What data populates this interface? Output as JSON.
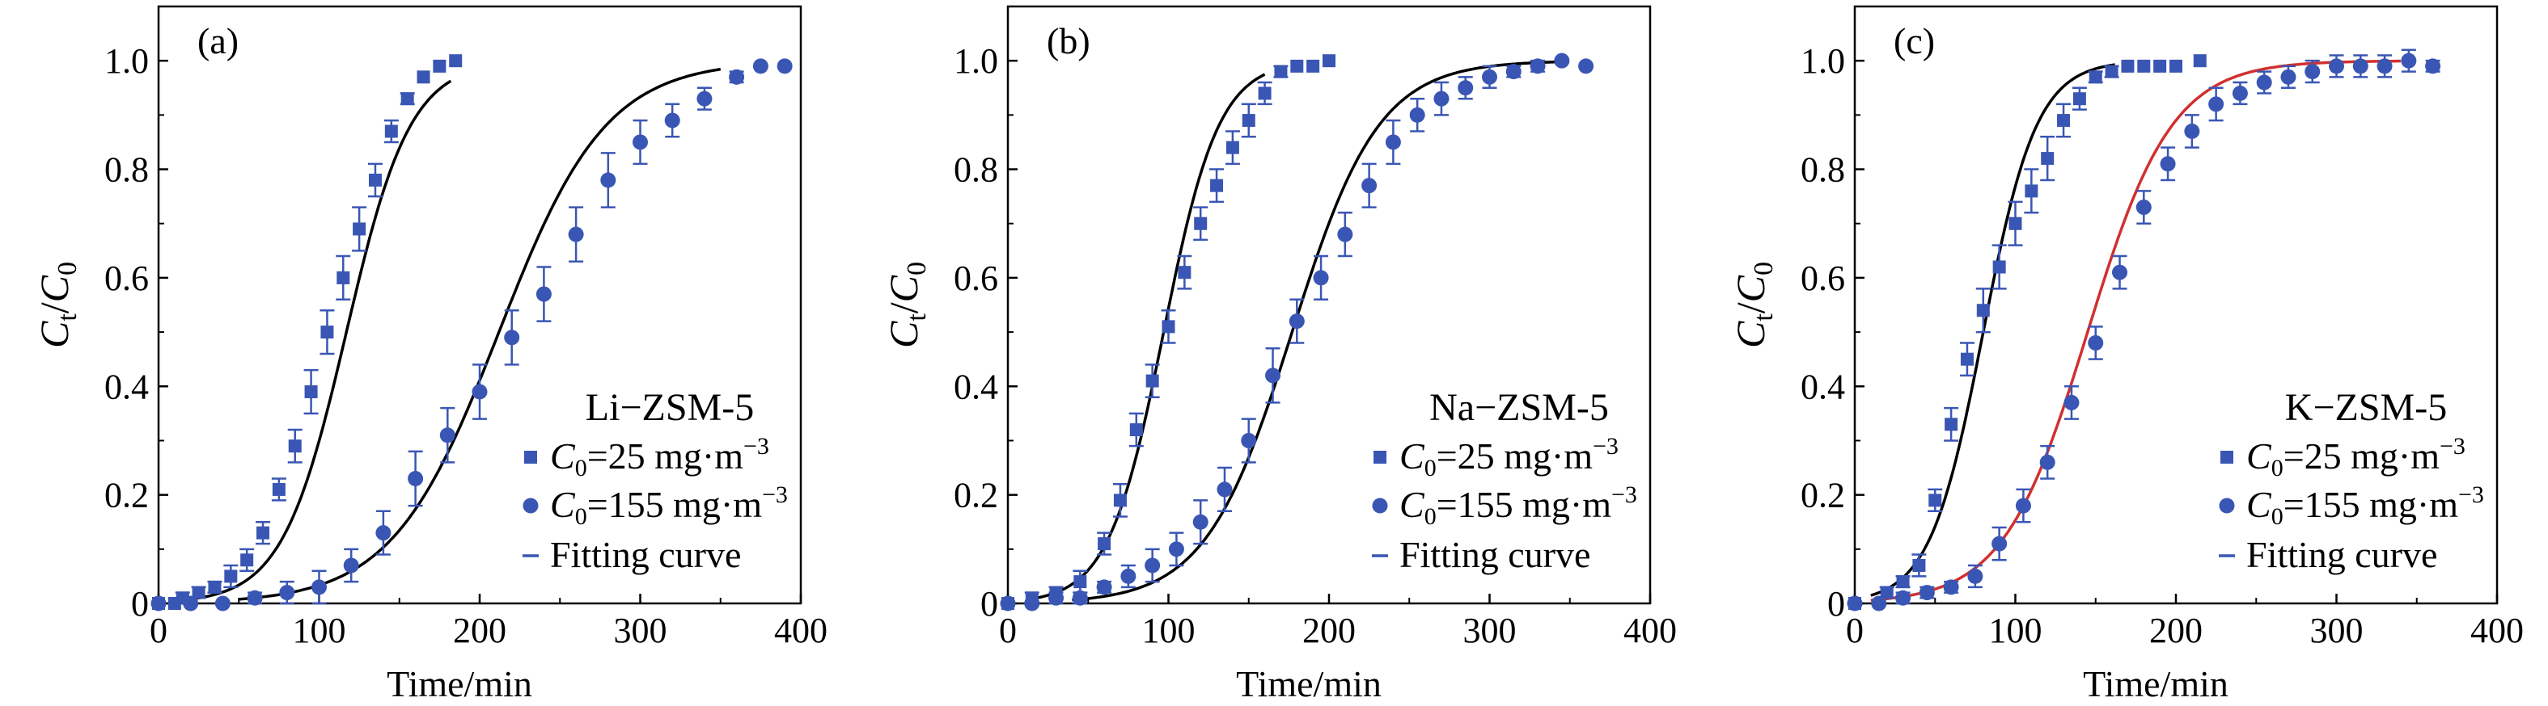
{
  "chart_data": [
    {
      "type": "scatter",
      "panel_label": "(a)",
      "material": "Li−ZSM-5",
      "xlabel": "Time/min",
      "ylabel": {
        "main": "C",
        "sub1": "t",
        "slash": "/",
        "main2": "C",
        "sub2": "0"
      },
      "xlim": [
        0,
        400
      ],
      "ylim": [
        0,
        1.1
      ],
      "xticks": [
        "0",
        "100",
        "200",
        "300",
        "400"
      ],
      "yticks": [
        "0",
        "0.2",
        "0.4",
        "0.6",
        "0.8",
        "1.0"
      ],
      "legend_position": "lower-right",
      "series": [
        {
          "name_main": "C",
          "name_sub": "0",
          "name_rest": "=25 mg·m",
          "name_sup": "−3",
          "marker": "square",
          "color": "#3a56b4",
          "x": [
            0,
            10,
            15,
            25,
            35,
            45,
            55,
            65,
            75,
            85,
            95,
            105,
            115,
            125,
            135,
            145,
            155,
            165,
            175,
            185
          ],
          "y": [
            0.0,
            0.0,
            0.01,
            0.02,
            0.03,
            0.05,
            0.08,
            0.13,
            0.21,
            0.29,
            0.39,
            0.5,
            0.6,
            0.69,
            0.78,
            0.87,
            0.93,
            0.97,
            0.99,
            1.0
          ],
          "err": [
            0.0,
            0.0,
            0.01,
            0.01,
            0.01,
            0.02,
            0.02,
            0.02,
            0.02,
            0.03,
            0.04,
            0.04,
            0.04,
            0.04,
            0.03,
            0.02,
            0.01,
            0.0,
            0.0,
            0.0
          ]
        },
        {
          "name_main": "C",
          "name_sub": "0",
          "name_rest": "=155 mg·m",
          "name_sup": "−3",
          "marker": "circle",
          "color": "#3a56b4",
          "x": [
            0,
            20,
            40,
            60,
            80,
            100,
            120,
            140,
            160,
            180,
            200,
            220,
            240,
            260,
            280,
            300,
            320,
            340,
            360,
            375,
            390
          ],
          "y": [
            0.0,
            0.0,
            0.0,
            0.01,
            0.02,
            0.03,
            0.07,
            0.13,
            0.23,
            0.31,
            0.39,
            0.49,
            0.57,
            0.68,
            0.78,
            0.85,
            0.89,
            0.93,
            0.97,
            0.99,
            0.99
          ],
          "err": [
            0.0,
            0.0,
            0.0,
            0.01,
            0.02,
            0.03,
            0.03,
            0.04,
            0.05,
            0.05,
            0.05,
            0.05,
            0.05,
            0.05,
            0.05,
            0.04,
            0.03,
            0.02,
            0.01,
            0.0,
            0.0
          ]
        }
      ],
      "fits": [
        {
          "color": "#000000",
          "k": 0.05,
          "t50": 117,
          "x_start": 20,
          "x_end": 182
        },
        {
          "color": "#000000",
          "k": 0.03,
          "t50": 212,
          "x_start": 50,
          "x_end": 350
        }
      ],
      "fit_label": "Fitting curve"
    },
    {
      "type": "scatter",
      "panel_label": "(b)",
      "material": "Na−ZSM-5",
      "xlabel": "Time/min",
      "ylabel": {
        "main": "C",
        "sub1": "t",
        "slash": "/",
        "main2": "C",
        "sub2": "0"
      },
      "xlim": [
        0,
        400
      ],
      "ylim": [
        0,
        1.1
      ],
      "xticks": [
        "0",
        "100",
        "200",
        "300",
        "400"
      ],
      "yticks": [
        "0",
        "0.2",
        "0.4",
        "0.6",
        "0.8",
        "1.0"
      ],
      "legend_position": "lower-right",
      "series": [
        {
          "name_main": "C",
          "name_sub": "0",
          "name_rest": "=25 mg·m",
          "name_sup": "−3",
          "marker": "square",
          "color": "#3a56b4",
          "x": [
            0,
            15,
            30,
            45,
            60,
            70,
            80,
            90,
            100,
            110,
            120,
            130,
            140,
            150,
            160,
            170,
            180,
            190,
            200
          ],
          "y": [
            0.0,
            0.01,
            0.02,
            0.04,
            0.11,
            0.19,
            0.32,
            0.41,
            0.51,
            0.61,
            0.7,
            0.77,
            0.84,
            0.89,
            0.94,
            0.98,
            0.99,
            0.99,
            1.0
          ],
          "err": [
            0.0,
            0.01,
            0.01,
            0.02,
            0.02,
            0.03,
            0.03,
            0.03,
            0.03,
            0.03,
            0.03,
            0.03,
            0.03,
            0.03,
            0.02,
            0.01,
            0.0,
            0.0,
            0.0
          ]
        },
        {
          "name_main": "C",
          "name_sub": "0",
          "name_rest": "=155 mg·m",
          "name_sup": "−3",
          "marker": "circle",
          "color": "#3a56b4",
          "x": [
            0,
            15,
            30,
            45,
            60,
            75,
            90,
            105,
            120,
            135,
            150,
            165,
            180,
            195,
            210,
            225,
            240,
            255,
            270,
            285,
            300,
            315,
            330,
            345,
            360
          ],
          "y": [
            0.0,
            0.0,
            0.01,
            0.01,
            0.03,
            0.05,
            0.07,
            0.1,
            0.15,
            0.21,
            0.3,
            0.42,
            0.52,
            0.6,
            0.68,
            0.77,
            0.85,
            0.9,
            0.93,
            0.95,
            0.97,
            0.98,
            0.99,
            1.0,
            0.99
          ],
          "err": [
            0.0,
            0.0,
            0.01,
            0.01,
            0.01,
            0.02,
            0.03,
            0.03,
            0.04,
            0.04,
            0.04,
            0.05,
            0.04,
            0.04,
            0.04,
            0.04,
            0.04,
            0.03,
            0.03,
            0.02,
            0.02,
            0.01,
            0.01,
            0.0,
            0.0
          ]
        }
      ],
      "fits": [
        {
          "color": "#000000",
          "k": 0.058,
          "t50": 97,
          "x_start": 15,
          "x_end": 160
        },
        {
          "color": "#000000",
          "k": 0.037,
          "t50": 177,
          "x_start": 40,
          "x_end": 345
        }
      ],
      "fit_label": "Fitting curve"
    },
    {
      "type": "scatter",
      "panel_label": "(c)",
      "material": "K−ZSM-5",
      "xlabel": "Time/min",
      "ylabel": {
        "main": "C",
        "sub1": "t",
        "slash": "/",
        "main2": "C",
        "sub2": "0"
      },
      "xlim": [
        0,
        400
      ],
      "ylim": [
        0,
        1.1
      ],
      "xticks": [
        "0",
        "100",
        "200",
        "300",
        "400"
      ],
      "yticks": [
        "0",
        "0.2",
        "0.4",
        "0.6",
        "0.8",
        "1.0"
      ],
      "legend_position": "lower-right",
      "series": [
        {
          "name_main": "C",
          "name_sub": "0",
          "name_rest": "=25 mg·m",
          "name_sup": "−3",
          "marker": "square",
          "color": "#3a56b4",
          "x": [
            0,
            20,
            30,
            40,
            50,
            60,
            70,
            80,
            90,
            100,
            110,
            120,
            130,
            140,
            150,
            160,
            170,
            180,
            190,
            200,
            215
          ],
          "y": [
            0.0,
            0.02,
            0.04,
            0.07,
            0.19,
            0.33,
            0.45,
            0.54,
            0.62,
            0.7,
            0.76,
            0.82,
            0.89,
            0.93,
            0.97,
            0.98,
            0.99,
            0.99,
            0.99,
            0.99,
            1.0
          ],
          "err": [
            0.0,
            0.01,
            0.01,
            0.02,
            0.02,
            0.03,
            0.03,
            0.04,
            0.04,
            0.04,
            0.04,
            0.04,
            0.03,
            0.02,
            0.01,
            0.01,
            0.0,
            0.0,
            0.0,
            0.0,
            0.0
          ]
        },
        {
          "name_main": "C",
          "name_sub": "0",
          "name_rest": "=155 mg·m",
          "name_sup": "−3",
          "marker": "circle",
          "color": "#3a56b4",
          "x": [
            0,
            15,
            30,
            45,
            60,
            75,
            90,
            105,
            120,
            135,
            150,
            165,
            180,
            195,
            210,
            225,
            240,
            255,
            270,
            285,
            300,
            315,
            330,
            345,
            360
          ],
          "y": [
            0.0,
            0.0,
            0.01,
            0.02,
            0.03,
            0.05,
            0.11,
            0.18,
            0.26,
            0.37,
            0.48,
            0.61,
            0.73,
            0.81,
            0.87,
            0.92,
            0.94,
            0.96,
            0.97,
            0.98,
            0.99,
            0.99,
            0.99,
            1.0,
            0.99
          ],
          "err": [
            0.0,
            0.0,
            0.01,
            0.01,
            0.01,
            0.02,
            0.03,
            0.03,
            0.03,
            0.03,
            0.03,
            0.03,
            0.03,
            0.03,
            0.03,
            0.03,
            0.02,
            0.02,
            0.02,
            0.02,
            0.02,
            0.02,
            0.02,
            0.02,
            0.01
          ]
        }
      ],
      "fits": [
        {
          "color": "#000000",
          "k": 0.06,
          "t50": 80,
          "x_start": 10,
          "x_end": 162
        },
        {
          "color": "#d03030",
          "k": 0.038,
          "t50": 145,
          "x_start": 10,
          "x_end": 340
        }
      ],
      "fit_label": "Fitting curve"
    }
  ]
}
